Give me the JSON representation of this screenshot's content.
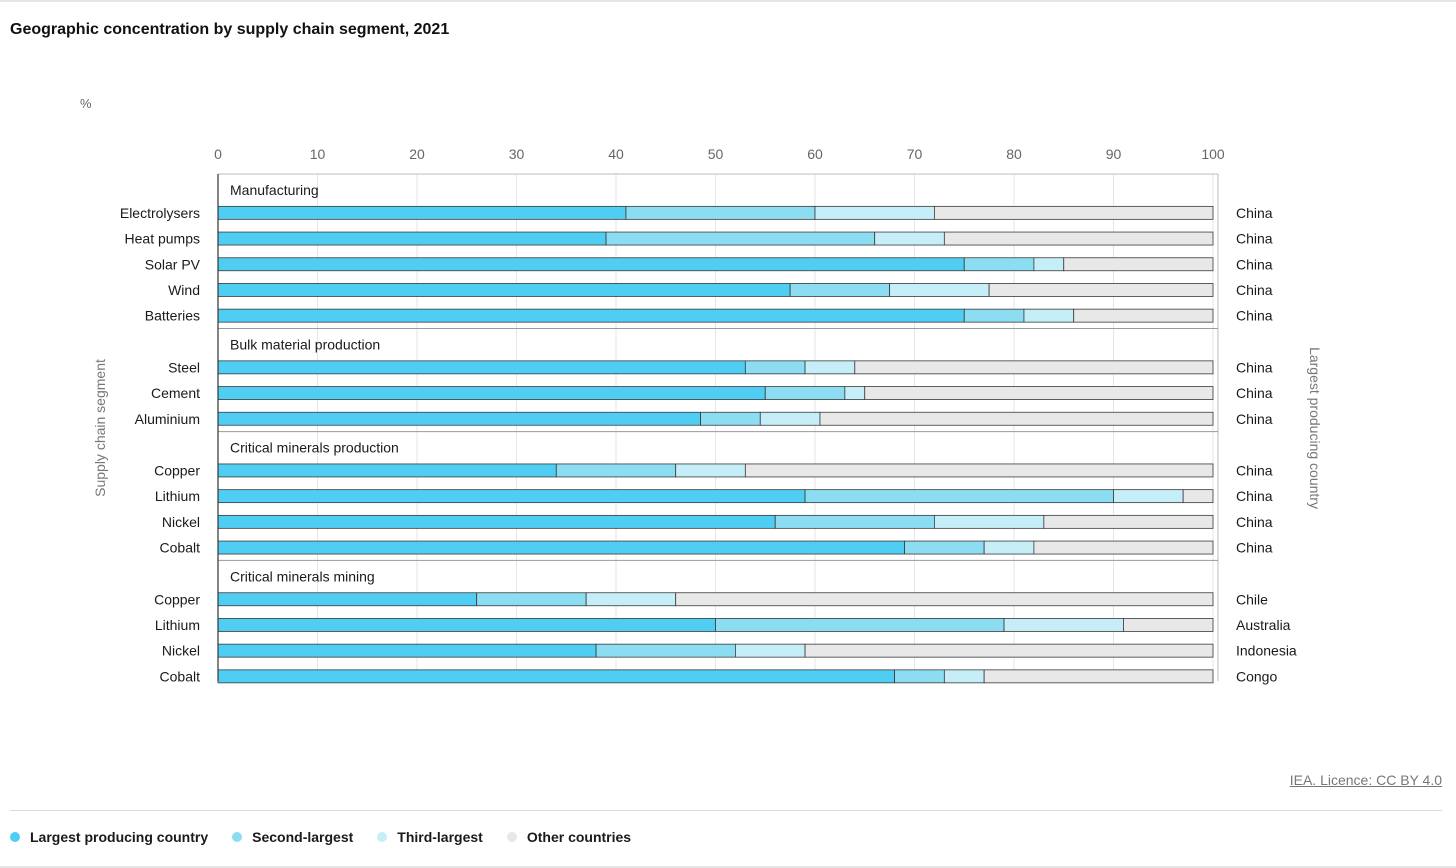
{
  "title": "Geographic concentration by supply chain segment, 2021",
  "credit": "IEA. Licence: CC BY 4.0",
  "colors": {
    "largest": "#4fcdf3",
    "second": "#8cdcf2",
    "third": "#c6eef8",
    "other": "#e8e8e8",
    "outline": "#3a3a3a",
    "grid": "#e6e6e6"
  },
  "legend": [
    {
      "label": "Largest producing country",
      "color": "#4fcdf3"
    },
    {
      "label": "Second-largest",
      "color": "#8cdcf2"
    },
    {
      "label": "Third-largest",
      "color": "#c6eef8"
    },
    {
      "label": "Other countries",
      "color": "#e8e8e8"
    }
  ],
  "chart_data": {
    "type": "bar",
    "orientation": "horizontal",
    "stacked": true,
    "title": "Geographic concentration by supply chain segment, 2021",
    "unit_label": "%",
    "xlim": [
      0,
      100
    ],
    "xticks": [
      0,
      10,
      20,
      30,
      40,
      50,
      60,
      70,
      80,
      90,
      100
    ],
    "ylabel": "Supply chain segment",
    "y2label": "Largest producing country",
    "grid": true,
    "legend_position": "bottom-left",
    "series_names": [
      "Largest producing country",
      "Second-largest",
      "Third-largest",
      "Other countries"
    ],
    "groups": [
      {
        "name": "Manufacturing",
        "rows": [
          {
            "label": "Electrolysers",
            "country": "China",
            "values": [
              41,
              19,
              12,
              28
            ]
          },
          {
            "label": "Heat pumps",
            "country": "China",
            "values": [
              39,
              27,
              7,
              27
            ]
          },
          {
            "label": "Solar PV",
            "country": "China",
            "values": [
              75,
              7,
              3,
              15
            ]
          },
          {
            "label": "Wind",
            "country": "China",
            "values": [
              57.5,
              10,
              10,
              22.5
            ]
          },
          {
            "label": "Batteries",
            "country": "China",
            "values": [
              75,
              6,
              5,
              14
            ]
          }
        ]
      },
      {
        "name": "Bulk material production",
        "rows": [
          {
            "label": "Steel",
            "country": "China",
            "values": [
              53,
              6,
              5,
              36
            ]
          },
          {
            "label": "Cement",
            "country": "China",
            "values": [
              55,
              8,
              2,
              35
            ]
          },
          {
            "label": "Aluminium",
            "country": "China",
            "values": [
              48.5,
              6,
              6,
              39.5
            ]
          }
        ]
      },
      {
        "name": "Critical minerals production",
        "rows": [
          {
            "label": "Copper",
            "country": "China",
            "values": [
              34,
              12,
              7,
              47
            ]
          },
          {
            "label": "Lithium",
            "country": "China",
            "values": [
              59,
              31,
              7,
              3
            ]
          },
          {
            "label": "Nickel",
            "country": "China",
            "values": [
              56,
              16,
              11,
              17
            ]
          },
          {
            "label": "Cobalt",
            "country": "China",
            "values": [
              69,
              8,
              5,
              18
            ]
          }
        ]
      },
      {
        "name": "Critical minerals mining",
        "rows": [
          {
            "label": "Copper",
            "country": "Chile",
            "values": [
              26,
              11,
              9,
              54
            ]
          },
          {
            "label": "Lithium",
            "country": "Australia",
            "values": [
              50,
              29,
              12,
              9
            ]
          },
          {
            "label": "Nickel",
            "country": "Indonesia",
            "values": [
              38,
              14,
              7,
              41
            ]
          },
          {
            "label": "Cobalt",
            "country": "Congo",
            "values": [
              68,
              5,
              4,
              23
            ]
          }
        ]
      }
    ]
  }
}
